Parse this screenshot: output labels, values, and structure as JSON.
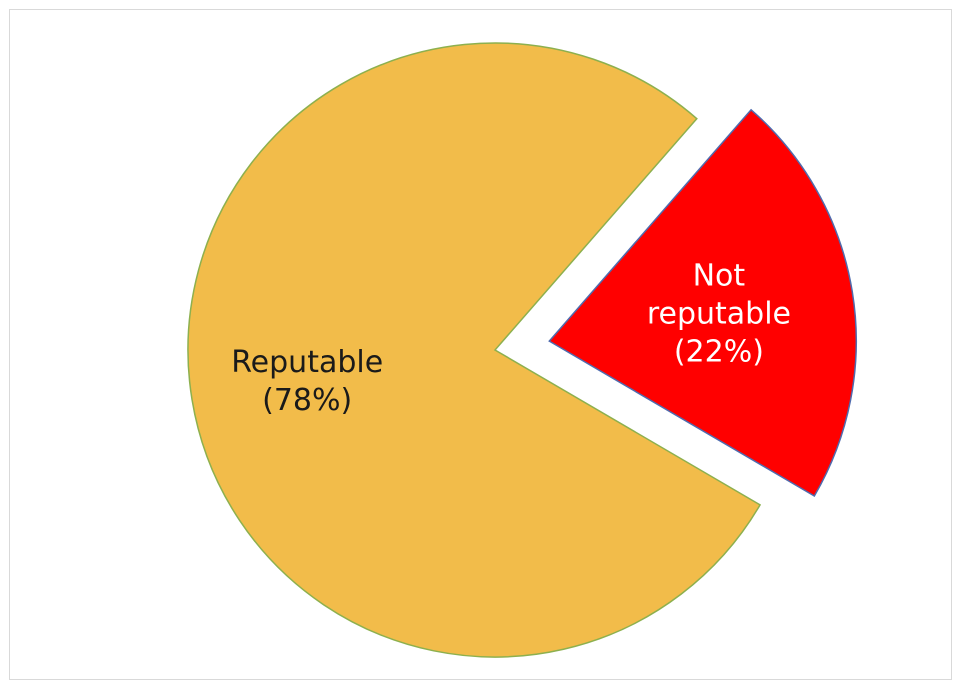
{
  "chart_data": {
    "type": "pie",
    "title": "",
    "legend": "none",
    "slices": [
      {
        "label_lines": [
          "Reputable",
          "(78%)"
        ],
        "category": "Reputable",
        "value": 78,
        "color": "#F2BC4A",
        "stroke": "#8DB04E",
        "label_color": "#1a1a1a",
        "exploded": false
      },
      {
        "label_lines": [
          "Not",
          "reputable",
          "(22%)"
        ],
        "category": "Not reputable",
        "value": 22,
        "color": "#FF0000",
        "stroke": "#4F6BAE",
        "label_color": "#ffffff",
        "exploded": true
      }
    ]
  }
}
